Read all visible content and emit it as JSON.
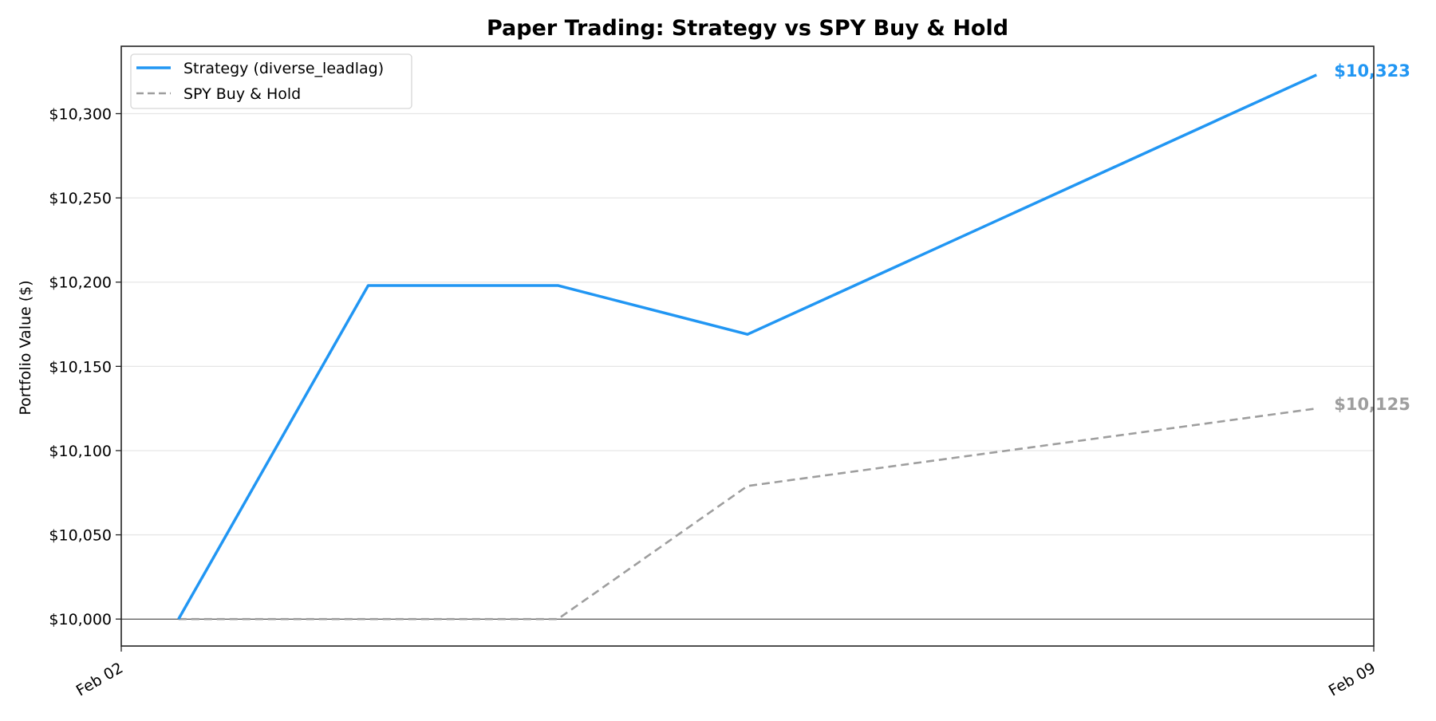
{
  "chart_data": {
    "type": "line",
    "title": "Paper Trading: Strategy vs SPY Buy & Hold",
    "xlabel": "",
    "ylabel": "Portfolio Value ($)",
    "x_unit": "days since Feb 02",
    "xlim": [
      0,
      7
    ],
    "ylim": [
      9984,
      10340
    ],
    "x_ticks": [
      {
        "value": 0,
        "label": "Feb 02"
      },
      {
        "value": 7,
        "label": "Feb 09"
      }
    ],
    "y_ticks": [
      {
        "value": 10000,
        "label": "$10,000"
      },
      {
        "value": 10050,
        "label": "$10,050"
      },
      {
        "value": 10100,
        "label": "$10,100"
      },
      {
        "value": 10150,
        "label": "$10,150"
      },
      {
        "value": 10200,
        "label": "$10,200"
      },
      {
        "value": 10250,
        "label": "$10,250"
      },
      {
        "value": 10300,
        "label": "$10,300"
      }
    ],
    "grid": "horizontal",
    "baseline": 10000,
    "legend_position": "top-left",
    "series": [
      {
        "name": "Strategy (diverse_leadlag)",
        "color": "#2196F3",
        "style": "solid",
        "x": [
          0.32,
          1.38,
          2.44,
          3.5,
          6.68
        ],
        "values": [
          10000,
          10198,
          10198,
          10169,
          10323
        ],
        "end_label": "$10,323"
      },
      {
        "name": "SPY Buy & Hold",
        "color": "#9E9E9E",
        "style": "dashed",
        "x": [
          0.32,
          1.38,
          2.44,
          3.5,
          6.68
        ],
        "values": [
          10000,
          10000,
          10000,
          10079,
          10125
        ],
        "end_label": "$10,125"
      }
    ]
  }
}
